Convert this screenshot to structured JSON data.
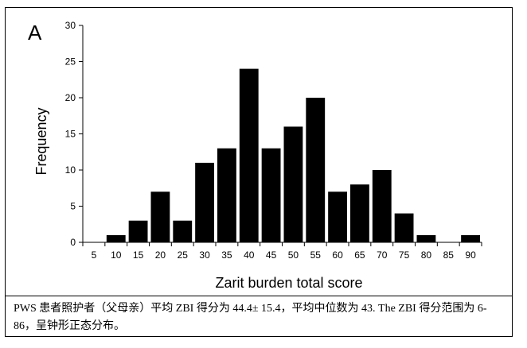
{
  "panel_label": "A",
  "caption": "PWS 患者照护者（父母亲）平均 ZBI 得分为 44.4± 15.4，平均中位数为 43. The ZBI 得分范围为 6-86，呈钟形正态分布。",
  "chart_data": {
    "type": "bar",
    "categories": [
      "5",
      "10",
      "15",
      "20",
      "25",
      "30",
      "35",
      "40",
      "45",
      "50",
      "55",
      "60",
      "65",
      "70",
      "75",
      "80",
      "85",
      "90"
    ],
    "values": [
      0,
      1,
      3,
      7,
      3,
      11,
      13,
      24,
      13,
      16,
      20,
      7,
      8,
      10,
      4,
      1,
      0,
      1
    ],
    "xlabel": "Zarit burden total score",
    "ylabel": "Frequency",
    "ylim": [
      0,
      30
    ],
    "yticks": [
      0,
      5,
      10,
      15,
      20,
      25,
      30
    ],
    "grid": false,
    "legend": "none",
    "bar_color": "#000000"
  }
}
